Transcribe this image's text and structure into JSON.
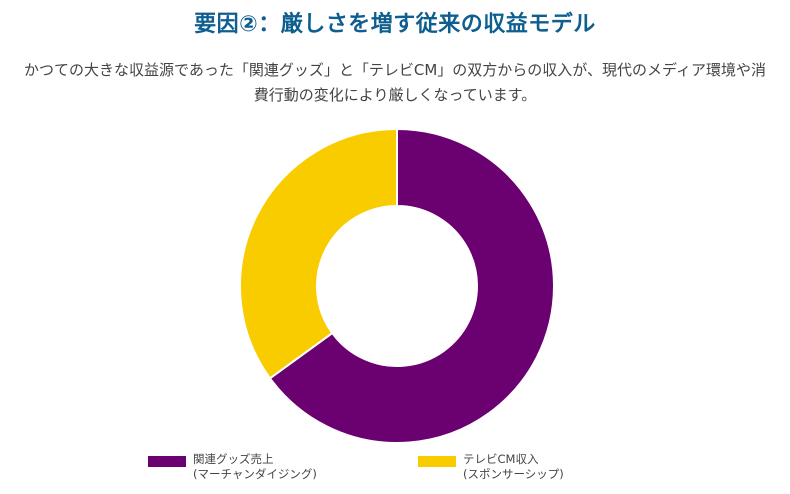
{
  "page": {
    "title": "要因②：厳しさを増す従来の収益モデル",
    "description": "かつての大きな収益源であった「関連グッズ」と「テレビCM」の双方からの収入が、現代のメディア環境や消費行動の変化により厳しくなっています。"
  },
  "chart_data": {
    "type": "pie",
    "variant": "donut",
    "title": "",
    "categories": [
      "関連グッズ売上 (マーチャンダイジング)",
      "テレビCM収入 (スポンサーシップ)"
    ],
    "values": [
      65,
      35
    ],
    "colors": [
      "#6b0070",
      "#f9cc00"
    ],
    "legend": [
      {
        "line1": "関連グッズ売上",
        "line2": "(マーチャンダイジング)",
        "color": "#6b0070"
      },
      {
        "line1": "テレビCM収入",
        "line2": "(スポンサーシップ)",
        "color": "#f9cc00"
      }
    ],
    "legend_position": "bottom"
  }
}
